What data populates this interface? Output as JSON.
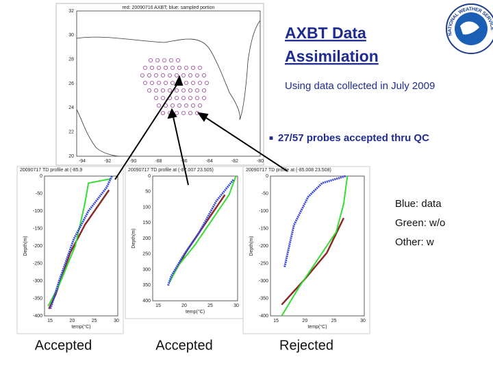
{
  "header": {
    "title_lines": [
      "AXBT Data",
      "Assimilation"
    ],
    "subtitle": "Using data collected in July 2009",
    "bullet": "27/57 probes accepted thru QC"
  },
  "logo_text": "NATIONAL WEATHER SERVICE",
  "legend_notes": [
    "Blue: data",
    "Green: w/o",
    "Other: w"
  ],
  "map": {
    "title": "red: 20090716 AXBT; blue: sampled portion",
    "yticks": [
      "32",
      "30",
      "28",
      "26",
      "24",
      "22",
      "20"
    ],
    "xticks": [
      "-94",
      "-92",
      "-90",
      "-88",
      "-86",
      "-84",
      "-82",
      "-80"
    ]
  },
  "profiles": [
    {
      "title": "20090717 TD profile at (-85.9",
      "ylabel": "Depth(m)",
      "xlabel": "temp(°C)",
      "yticks": [
        "0",
        "-50",
        "-100",
        "-150",
        "-200",
        "-250",
        "-300",
        "-350",
        "-400"
      ],
      "xticks": [
        "15",
        "20",
        "25",
        "30"
      ],
      "caption": "Accepted"
    },
    {
      "title": "20090717 TD profile at (-87.007 23.505)",
      "ylabel": "Depth(m)",
      "xlabel": "temp(°C)",
      "yticks": [
        "0",
        "50",
        "100",
        "150",
        "200",
        "250",
        "300",
        "350",
        "400"
      ],
      "xticks": [
        "15",
        "20",
        "25",
        "30"
      ],
      "caption": "Accepted"
    },
    {
      "title": "20090717 TD profile at (-85.008 23.508)",
      "ylabel": "Depth(m)",
      "xlabel": "temp(°C)",
      "yticks": [
        "0",
        "-50",
        "-100",
        "-150",
        "-200",
        "-250",
        "-300",
        "-350",
        "-400"
      ],
      "xticks": [
        "15",
        "20",
        "25",
        "30"
      ],
      "caption": "Rejected"
    }
  ]
}
